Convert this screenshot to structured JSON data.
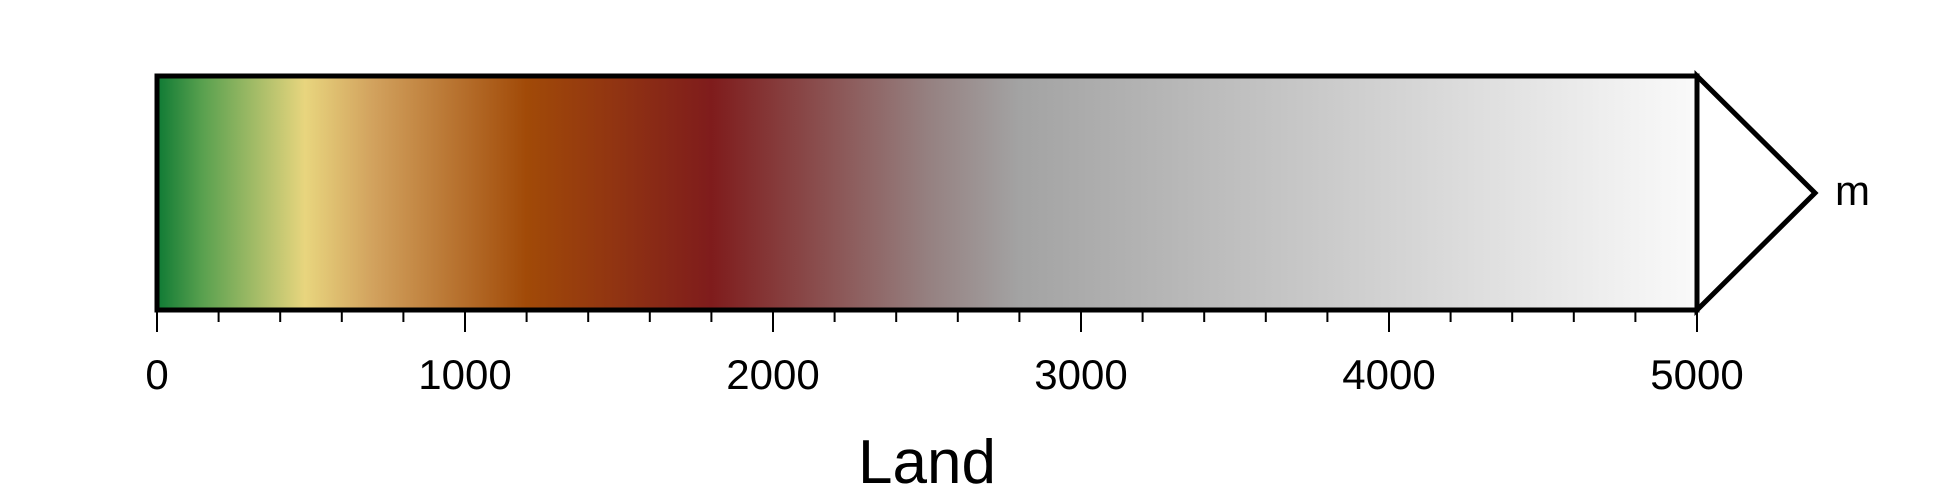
{
  "chart_data": {
    "type": "colorbar",
    "title": "",
    "xlabel": "Land",
    "unit": "m",
    "xlim": [
      0,
      5000
    ],
    "extend": "max",
    "major_ticks": [
      0,
      1000,
      2000,
      3000,
      4000,
      5000
    ],
    "major_tick_labels": [
      "0",
      "1000",
      "2000",
      "3000",
      "4000",
      "5000"
    ],
    "minor_tick_interval": 200,
    "colormap_stops": [
      {
        "value": 0,
        "color": "#0f7a34"
      },
      {
        "value": 150,
        "color": "#5aa14f"
      },
      {
        "value": 480,
        "color": "#e8d57e"
      },
      {
        "value": 700,
        "color": "#d2a25e"
      },
      {
        "value": 1200,
        "color": "#a14a08"
      },
      {
        "value": 1800,
        "color": "#7f1c1c"
      },
      {
        "value": 2500,
        "color": "#958080"
      },
      {
        "value": 2800,
        "color": "#a3a3a3"
      },
      {
        "value": 5000,
        "color": "#fafafa"
      }
    ],
    "extension_color": "#ffffff",
    "frame_color": "#000000"
  }
}
